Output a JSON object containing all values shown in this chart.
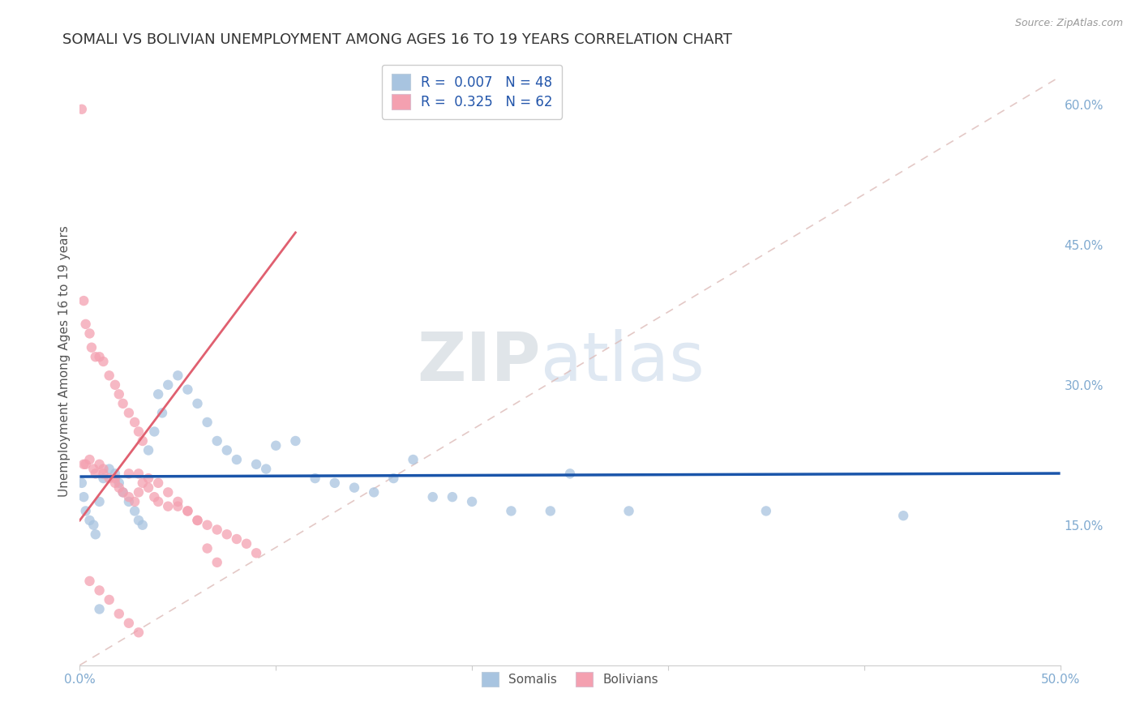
{
  "title": "SOMALI VS BOLIVIAN UNEMPLOYMENT AMONG AGES 16 TO 19 YEARS CORRELATION CHART",
  "source": "Source: ZipAtlas.com",
  "ylabel": "Unemployment Among Ages 16 to 19 years",
  "xlim": [
    0.0,
    0.5
  ],
  "ylim": [
    0.0,
    0.65
  ],
  "somali_color": "#a8c4e0",
  "bolivian_color": "#f4a0b0",
  "somali_R": "0.007",
  "somali_N": "48",
  "bolivian_R": "0.325",
  "bolivian_N": "62",
  "legend_somali_label": "Somalis",
  "legend_bolivian_label": "Bolivians",
  "watermark_zip": "ZIP",
  "watermark_atlas": "atlas",
  "background_color": "#ffffff",
  "grid_color": "#cccccc",
  "axis_color": "#80aad0",
  "title_fontsize": 13,
  "label_fontsize": 11,
  "tick_fontsize": 11,
  "somali_line_color": "#1a55aa",
  "bolivian_line_color": "#e06070",
  "diag_line_color": "#ddbbbb",
  "somali_scatter_x": [
    0.001,
    0.002,
    0.003,
    0.005,
    0.007,
    0.008,
    0.01,
    0.012,
    0.015,
    0.018,
    0.02,
    0.022,
    0.025,
    0.028,
    0.03,
    0.032,
    0.035,
    0.038,
    0.04,
    0.042,
    0.045,
    0.05,
    0.055,
    0.06,
    0.065,
    0.07,
    0.075,
    0.08,
    0.09,
    0.095,
    0.1,
    0.11,
    0.12,
    0.13,
    0.14,
    0.15,
    0.16,
    0.17,
    0.18,
    0.19,
    0.2,
    0.22,
    0.24,
    0.25,
    0.28,
    0.35,
    0.42,
    0.01
  ],
  "somali_scatter_y": [
    0.195,
    0.18,
    0.165,
    0.155,
    0.15,
    0.14,
    0.175,
    0.2,
    0.21,
    0.205,
    0.195,
    0.185,
    0.175,
    0.165,
    0.155,
    0.15,
    0.23,
    0.25,
    0.29,
    0.27,
    0.3,
    0.31,
    0.295,
    0.28,
    0.26,
    0.24,
    0.23,
    0.22,
    0.215,
    0.21,
    0.235,
    0.24,
    0.2,
    0.195,
    0.19,
    0.185,
    0.2,
    0.22,
    0.18,
    0.18,
    0.175,
    0.165,
    0.165,
    0.205,
    0.165,
    0.165,
    0.16,
    0.06
  ],
  "bolivian_scatter_x": [
    0.001,
    0.002,
    0.003,
    0.005,
    0.006,
    0.008,
    0.01,
    0.012,
    0.015,
    0.018,
    0.02,
    0.022,
    0.025,
    0.028,
    0.03,
    0.032,
    0.002,
    0.003,
    0.005,
    0.007,
    0.01,
    0.012,
    0.015,
    0.018,
    0.02,
    0.022,
    0.025,
    0.028,
    0.03,
    0.032,
    0.035,
    0.038,
    0.04,
    0.045,
    0.05,
    0.055,
    0.06,
    0.065,
    0.07,
    0.075,
    0.08,
    0.085,
    0.09,
    0.008,
    0.012,
    0.018,
    0.025,
    0.03,
    0.035,
    0.04,
    0.045,
    0.05,
    0.055,
    0.06,
    0.065,
    0.07,
    0.005,
    0.01,
    0.015,
    0.02,
    0.025,
    0.03
  ],
  "bolivian_scatter_y": [
    0.595,
    0.39,
    0.365,
    0.355,
    0.34,
    0.33,
    0.33,
    0.325,
    0.31,
    0.3,
    0.29,
    0.28,
    0.27,
    0.26,
    0.25,
    0.24,
    0.215,
    0.215,
    0.22,
    0.21,
    0.215,
    0.21,
    0.2,
    0.195,
    0.19,
    0.185,
    0.18,
    0.175,
    0.185,
    0.195,
    0.19,
    0.18,
    0.175,
    0.17,
    0.17,
    0.165,
    0.155,
    0.15,
    0.145,
    0.14,
    0.135,
    0.13,
    0.12,
    0.205,
    0.205,
    0.2,
    0.205,
    0.205,
    0.2,
    0.195,
    0.185,
    0.175,
    0.165,
    0.155,
    0.125,
    0.11,
    0.09,
    0.08,
    0.07,
    0.055,
    0.045,
    0.035
  ]
}
